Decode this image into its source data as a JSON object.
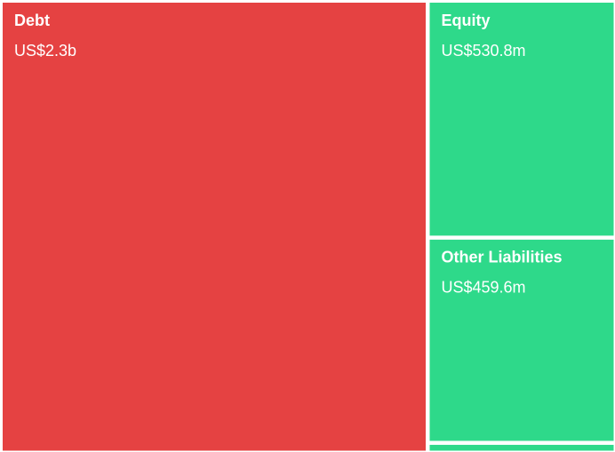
{
  "chart_data": {
    "type": "treemap",
    "categories": [
      "Debt",
      "Equity",
      "Other Liabilities",
      null
    ],
    "values": [
      2300000000,
      530800000,
      459600000,
      22000000
    ],
    "value_labels": [
      "US$2.3b",
      "US$530.8m",
      "US$459.6m",
      null
    ],
    "colors": [
      "#e54242",
      "#2ed98a",
      "#2ed98a",
      "#2ed98a"
    ]
  }
}
